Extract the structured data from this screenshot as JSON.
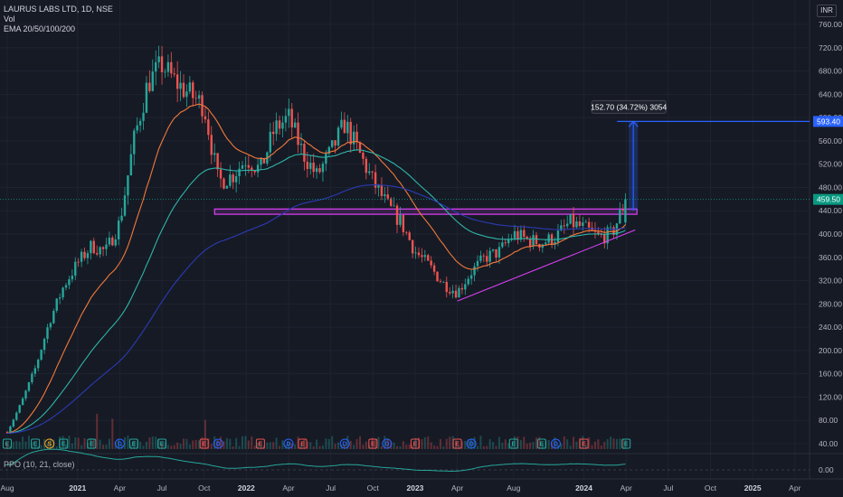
{
  "legend": {
    "symbol_line": "LAURUS LABS LTD, 1D, NSE",
    "vol_label": "Vol",
    "ema_label": "EMA 20/50/100/200"
  },
  "ppo_label": "PPO (10, 21, close)",
  "currency": "INR",
  "colors": {
    "background": "#161a25",
    "grid": "#1f2330",
    "up": "#26a69a",
    "down": "#ef5350",
    "ema20": "#f2793a",
    "ema50": "#2fb5a8",
    "ema100": "#2b3bb3",
    "support": "#e040fb",
    "measure": "#2962ff",
    "price_badge": "#089981"
  },
  "chart_data": {
    "type": "candlestick",
    "symbol": "LAURUS LABS LTD",
    "interval": "1D",
    "exchange": "NSE",
    "y_ticks": [
      "760.00",
      "720.00",
      "680.00",
      "640.00",
      "600.00",
      "560.00",
      "520.00",
      "480.00",
      "440.00",
      "400.00",
      "360.00",
      "320.00",
      "280.00",
      "240.00",
      "200.00",
      "160.00",
      "120.00",
      "80.00",
      "40.00"
    ],
    "ylim": [
      40,
      770
    ],
    "x_ticks": [
      "Aug",
      "2021",
      "Apr",
      "Jul",
      "Oct",
      "2022",
      "Apr",
      "Jul",
      "Oct",
      "2023",
      "Apr",
      "Aug",
      "2024",
      "Apr",
      "Jul",
      "Oct",
      "2025",
      "Apr"
    ],
    "year_ticks": [
      "2021",
      "2022",
      "2023",
      "2024",
      "2025"
    ],
    "price_path": [
      {
        "date": "2020-08",
        "close": 60
      },
      {
        "date": "2020-09",
        "close": 110
      },
      {
        "date": "2020-10",
        "close": 170
      },
      {
        "date": "2020-11",
        "close": 250
      },
      {
        "date": "2020-12",
        "close": 310
      },
      {
        "date": "2021-01",
        "close": 350
      },
      {
        "date": "2021-02",
        "close": 380
      },
      {
        "date": "2021-03",
        "close": 370
      },
      {
        "date": "2021-04",
        "close": 420
      },
      {
        "date": "2021-05",
        "close": 560
      },
      {
        "date": "2021-06",
        "close": 660
      },
      {
        "date": "2021-07",
        "close": 690
      },
      {
        "date": "2021-08",
        "close": 660
      },
      {
        "date": "2021-09",
        "close": 640
      },
      {
        "date": "2021-10",
        "close": 620
      },
      {
        "date": "2021-11",
        "close": 490
      },
      {
        "date": "2021-12",
        "close": 500
      },
      {
        "date": "2022-01",
        "close": 530
      },
      {
        "date": "2022-02",
        "close": 510
      },
      {
        "date": "2022-03",
        "close": 580
      },
      {
        "date": "2022-04",
        "close": 600
      },
      {
        "date": "2022-05",
        "close": 540
      },
      {
        "date": "2022-06",
        "close": 500
      },
      {
        "date": "2022-07",
        "close": 540
      },
      {
        "date": "2022-08",
        "close": 590
      },
      {
        "date": "2022-09",
        "close": 540
      },
      {
        "date": "2022-10",
        "close": 490
      },
      {
        "date": "2022-11",
        "close": 450
      },
      {
        "date": "2022-12",
        "close": 420
      },
      {
        "date": "2023-01",
        "close": 370
      },
      {
        "date": "2023-02",
        "close": 345
      },
      {
        "date": "2023-03",
        "close": 315
      },
      {
        "date": "2023-04",
        "close": 300
      },
      {
        "date": "2023-05",
        "close": 335
      },
      {
        "date": "2023-06",
        "close": 360
      },
      {
        "date": "2023-07",
        "close": 370
      },
      {
        "date": "2023-08",
        "close": 400
      },
      {
        "date": "2023-09",
        "close": 390
      },
      {
        "date": "2023-10",
        "close": 385
      },
      {
        "date": "2023-11",
        "close": 395
      },
      {
        "date": "2023-12",
        "close": 420
      },
      {
        "date": "2024-01",
        "close": 410
      },
      {
        "date": "2024-02",
        "close": 395
      },
      {
        "date": "2024-03",
        "close": 400
      },
      {
        "date": "2024-04",
        "close": 459.5
      }
    ],
    "current_price": "459.50",
    "target_price": "593.40",
    "measurement": "152.70 (34.72%) 3054",
    "support_zone": [
      434,
      443
    ],
    "rising_trendline": [
      {
        "date": "2023-04",
        "price": 285
      },
      {
        "date": "2024-04",
        "price": 407
      }
    ],
    "ema_series": [
      "EMA 20",
      "EMA 50",
      "EMA 100",
      "EMA 200"
    ],
    "event_markers": [
      {
        "date": "2020-08",
        "type": "E"
      },
      {
        "date": "2020-10",
        "type": "E"
      },
      {
        "date": "2020-11",
        "type": "S"
      },
      {
        "date": "2020-12",
        "type": "E"
      },
      {
        "date": "2021-02",
        "type": "E"
      },
      {
        "date": "2021-04",
        "type": "D"
      },
      {
        "date": "2021-05",
        "type": "E"
      },
      {
        "date": "2021-07",
        "type": "E"
      },
      {
        "date": "2021-10",
        "type": "E"
      },
      {
        "date": "2021-11",
        "type": "D"
      },
      {
        "date": "2022-02",
        "type": "E"
      },
      {
        "date": "2022-04",
        "type": "D"
      },
      {
        "date": "2022-05",
        "type": "E"
      },
      {
        "date": "2022-08",
        "type": "D"
      },
      {
        "date": "2022-10",
        "type": "E"
      },
      {
        "date": "2022-11",
        "type": "D"
      },
      {
        "date": "2023-01",
        "type": "E"
      },
      {
        "date": "2023-04",
        "type": "E"
      },
      {
        "date": "2023-05",
        "type": "D"
      },
      {
        "date": "2023-08",
        "type": "E"
      },
      {
        "date": "2023-10",
        "type": "E"
      },
      {
        "date": "2023-11",
        "type": "D"
      },
      {
        "date": "2024-01",
        "type": "E"
      },
      {
        "date": "2024-04",
        "type": "E"
      }
    ],
    "ppo_zero_label": "0.00"
  }
}
